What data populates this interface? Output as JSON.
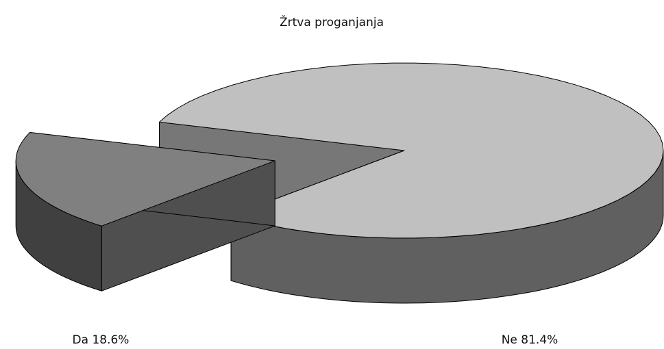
{
  "chart_data": {
    "type": "pie3d",
    "title": "Žrtva proganjanja",
    "categories": [
      "Da",
      "Ne"
    ],
    "values": [
      18.6,
      81.4
    ],
    "value_labels": [
      "18.6%",
      "81.4%"
    ],
    "colors": [
      "#808080",
      "#c0c0c0"
    ],
    "exploded": [
      "Da"
    ]
  }
}
